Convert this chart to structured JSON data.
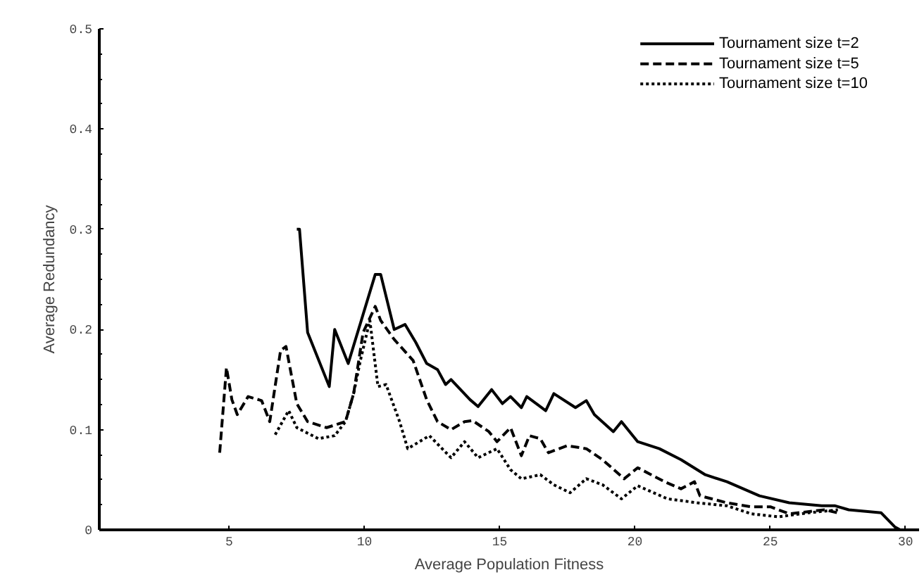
{
  "chart_data": {
    "type": "line",
    "xlabel": "Average Population Fitness",
    "ylabel": "Average Redundancy",
    "xlim": [
      0.2,
      30.5
    ],
    "ylim": [
      0,
      0.5
    ],
    "xticks": [
      5,
      10,
      15,
      20,
      25,
      30
    ],
    "yticks": [
      0,
      0.1,
      0.2,
      0.3,
      0.4,
      0.5
    ],
    "grid": false,
    "legend": "top right",
    "marker": "none",
    "series": [
      {
        "name": "Tournament size t=2",
        "color": "#000000",
        "line_style": "solid",
        "x": [
          7.5,
          7.6,
          7.9,
          8.7,
          8.9,
          9.4,
          9.95,
          10.4,
          10.6,
          11.1,
          11.5,
          11.9,
          12.3,
          12.7,
          13.0,
          13.2,
          13.9,
          14.2,
          14.7,
          15.1,
          15.4,
          15.8,
          16.0,
          16.7,
          17.0,
          17.8,
          18.2,
          18.5,
          19.2,
          19.5,
          20.1,
          20.9,
          21.7,
          22.6,
          23.4,
          24.6,
          25.7,
          26.9,
          27.4,
          27.9,
          29.1,
          29.6,
          29.8
        ],
        "values": [
          0.3,
          0.3,
          0.197,
          0.143,
          0.2,
          0.166,
          0.215,
          0.255,
          0.255,
          0.2,
          0.205,
          0.187,
          0.166,
          0.16,
          0.145,
          0.15,
          0.13,
          0.123,
          0.14,
          0.126,
          0.133,
          0.122,
          0.133,
          0.119,
          0.136,
          0.122,
          0.129,
          0.115,
          0.098,
          0.108,
          0.088,
          0.081,
          0.07,
          0.055,
          0.048,
          0.034,
          0.027,
          0.024,
          0.024,
          0.02,
          0.017,
          0.003,
          0.0
        ]
      },
      {
        "name": "Tournament size t=5",
        "color": "#000000",
        "line_style": "dashed",
        "x": [
          4.65,
          4.9,
          5.1,
          5.3,
          5.7,
          6.2,
          6.5,
          6.9,
          7.1,
          7.5,
          7.9,
          8.6,
          9.3,
          9.6,
          9.95,
          10.4,
          10.6,
          11.1,
          11.8,
          12.3,
          12.7,
          13.2,
          13.7,
          14.0,
          14.6,
          14.9,
          15.4,
          15.8,
          16.1,
          16.5,
          16.8,
          17.5,
          18.2,
          18.8,
          19.6,
          20.1,
          21.1,
          21.7,
          22.2,
          22.4,
          23.4,
          24.3,
          25.0,
          25.7,
          27.0,
          27.5
        ],
        "values": [
          0.077,
          0.162,
          0.13,
          0.115,
          0.133,
          0.129,
          0.108,
          0.179,
          0.183,
          0.126,
          0.108,
          0.102,
          0.108,
          0.136,
          0.197,
          0.223,
          0.209,
          0.19,
          0.169,
          0.13,
          0.108,
          0.1,
          0.108,
          0.109,
          0.098,
          0.088,
          0.102,
          0.074,
          0.094,
          0.091,
          0.077,
          0.084,
          0.081,
          0.07,
          0.051,
          0.062,
          0.048,
          0.041,
          0.048,
          0.034,
          0.027,
          0.023,
          0.023,
          0.016,
          0.02,
          0.017
        ]
      },
      {
        "name": "Tournament size t=10",
        "color": "#000000",
        "line_style": "dotted",
        "x": [
          6.7,
          7.2,
          7.5,
          8.3,
          8.9,
          9.3,
          9.6,
          9.85,
          10.2,
          10.5,
          10.8,
          11.3,
          11.6,
          12.4,
          13.2,
          13.7,
          14.2,
          14.9,
          15.4,
          15.8,
          16.5,
          17.0,
          17.6,
          18.2,
          18.8,
          19.5,
          20.1,
          21.2,
          22.3,
          23.4,
          24.3,
          25.3,
          26.4,
          27.5
        ],
        "values": [
          0.095,
          0.119,
          0.102,
          0.091,
          0.094,
          0.108,
          0.136,
          0.169,
          0.209,
          0.143,
          0.145,
          0.108,
          0.081,
          0.094,
          0.072,
          0.088,
          0.072,
          0.081,
          0.06,
          0.051,
          0.055,
          0.045,
          0.037,
          0.051,
          0.045,
          0.031,
          0.044,
          0.031,
          0.027,
          0.024,
          0.016,
          0.013,
          0.017,
          0.02
        ]
      }
    ]
  }
}
